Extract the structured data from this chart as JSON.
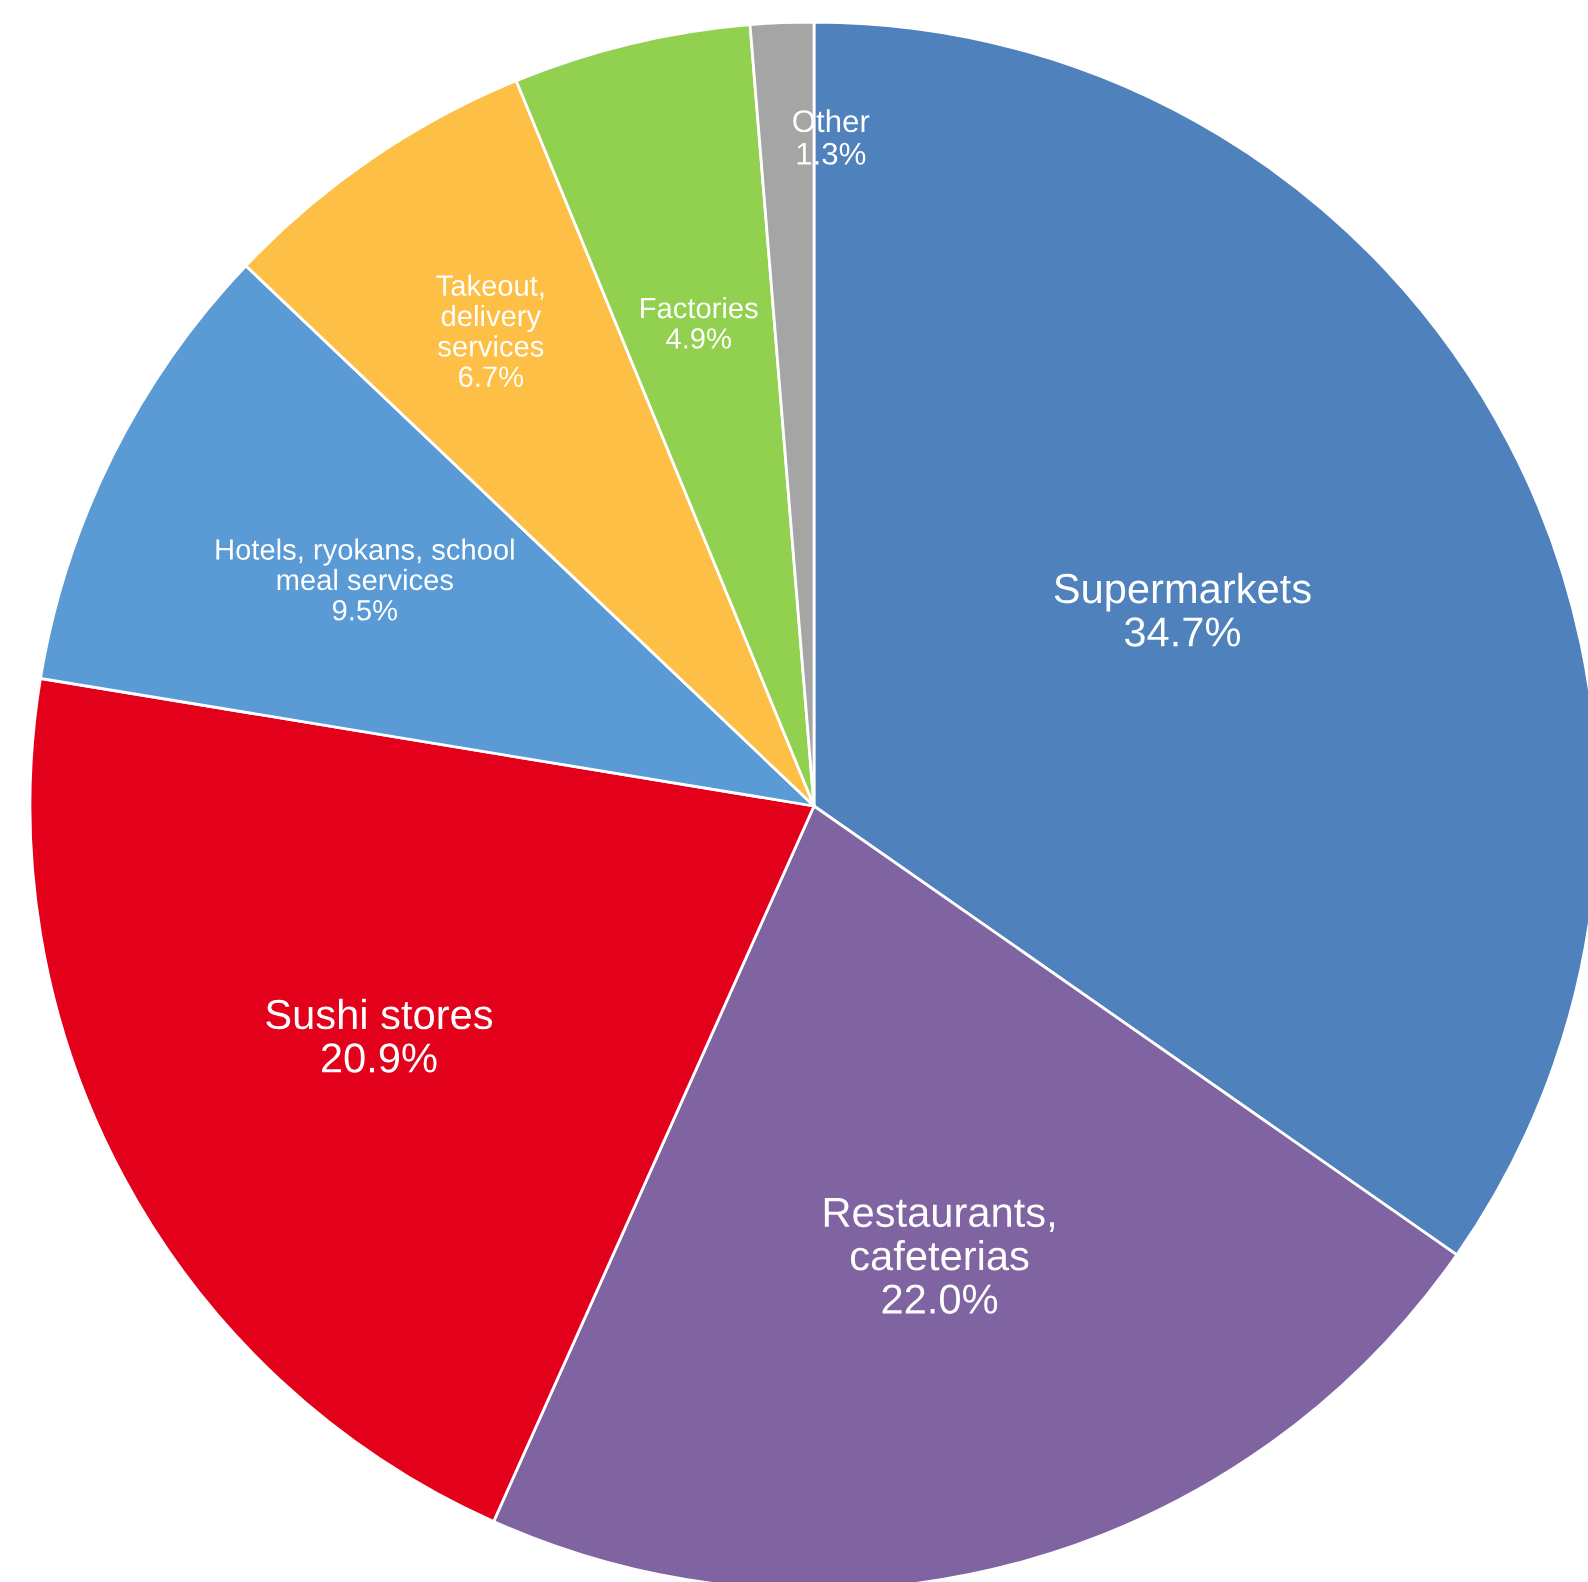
{
  "chart_data": {
    "type": "pie",
    "categories": [
      "Supermarkets",
      "Restaurants,\ncafeterias",
      "Sushi stores",
      "Hotels, ryokans, school\nmeal services",
      "Takeout,\ndelivery\nservices",
      "Factories",
      "Other"
    ],
    "values": [
      34.7,
      22.0,
      20.9,
      9.5,
      6.7,
      4.9,
      1.3
    ],
    "colors": [
      "#4f81bd",
      "#8064a2",
      "#e3001b",
      "#5b9bd5",
      "#fdbf45",
      "#92d050",
      "#a5a5a5"
    ],
    "value_labels": [
      "34.7%",
      "22.0%",
      "20.9%",
      "9.5%",
      "6.7%",
      "4.9%",
      "1.3%"
    ]
  }
}
